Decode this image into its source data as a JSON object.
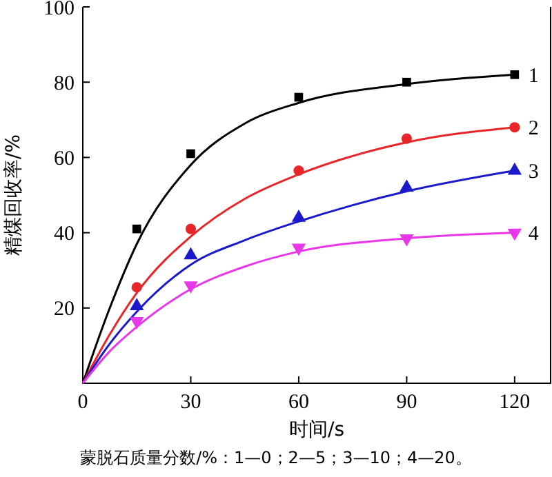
{
  "chart_data": {
    "type": "scatter",
    "xlabel": "时间/s",
    "ylabel": "精煤回收率/%",
    "xlim": [
      0,
      130
    ],
    "ylim": [
      0,
      100
    ],
    "xticks": [
      0,
      30,
      60,
      90,
      120
    ],
    "yticks": [
      20,
      40,
      60,
      80,
      100
    ],
    "grid": false,
    "annotations": [
      "蒙脱石质量分数/%：1—0；2—5；3—10；4—20。"
    ],
    "series": [
      {
        "name": "1",
        "marker": "square",
        "color": "#000000",
        "x": [
          15,
          30,
          60,
          90,
          120
        ],
        "values": [
          41,
          61,
          76,
          80,
          82
        ]
      },
      {
        "name": "2",
        "marker": "circle",
        "color": "#e8262a",
        "x": [
          15,
          30,
          60,
          90,
          120
        ],
        "values": [
          25.5,
          41,
          56.5,
          65,
          68
        ]
      },
      {
        "name": "3",
        "marker": "triangle",
        "color": "#1a1acc",
        "x": [
          15,
          30,
          60,
          90,
          120
        ],
        "values": [
          20.5,
          34,
          44,
          52,
          56.5
        ]
      },
      {
        "name": "4",
        "marker": "triangle",
        "color": "#e837e8",
        "x": [
          15,
          30,
          60,
          90,
          120
        ],
        "values": [
          16.5,
          26,
          36,
          38.5,
          40
        ]
      },
      {
        "type": "line",
        "marker": "none",
        "color": "#000000",
        "x": [
          0,
          7.5,
          15,
          30,
          45,
          60,
          90,
          120
        ],
        "values": [
          0,
          20,
          37,
          58,
          69,
          74.5,
          79.5,
          82
        ]
      },
      {
        "type": "line",
        "marker": "none",
        "color": "#e8262a",
        "x": [
          0,
          7.5,
          15,
          30,
          45,
          60,
          90,
          120
        ],
        "values": [
          0,
          13,
          24,
          39,
          49,
          55.5,
          64,
          68
        ]
      },
      {
        "type": "line",
        "marker": "none",
        "color": "#1a1acc",
        "x": [
          0,
          7.5,
          15,
          30,
          45,
          60,
          90,
          120
        ],
        "values": [
          0,
          10.5,
          19,
          31.5,
          38,
          43,
          51,
          56.5
        ]
      },
      {
        "type": "line",
        "marker": "none",
        "color": "#e837e8",
        "x": [
          0,
          7.5,
          15,
          30,
          45,
          60,
          90,
          120
        ],
        "values": [
          0,
          8.5,
          15,
          25,
          31,
          35,
          38.5,
          40
        ]
      }
    ]
  }
}
